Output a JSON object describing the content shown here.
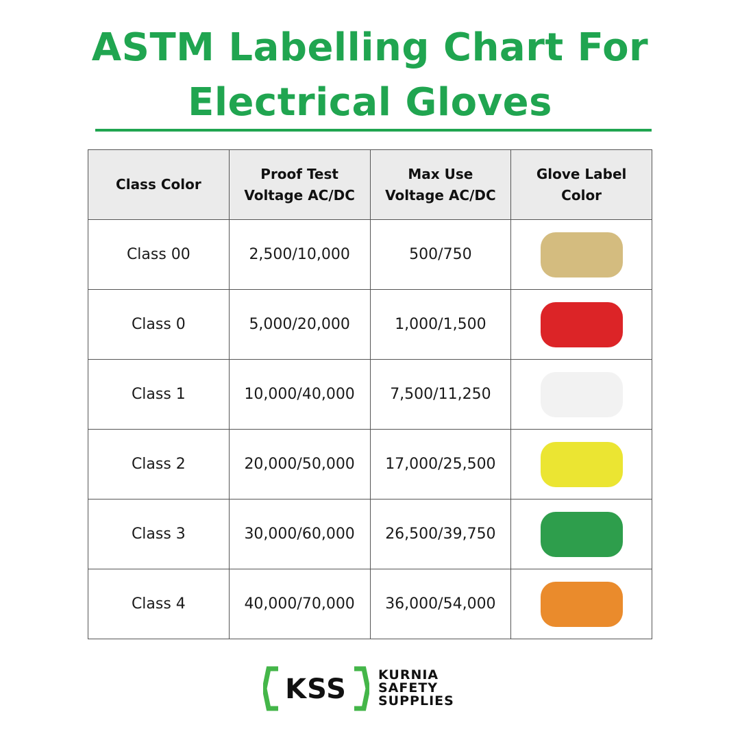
{
  "title": {
    "line1": "ASTM Labelling Chart For",
    "line2": "Electrical Gloves",
    "color": "#20a550"
  },
  "table": {
    "headers": [
      {
        "line1": "Class Color",
        "line2": ""
      },
      {
        "line1": "Proof Test",
        "line2": "Voltage AC/DC"
      },
      {
        "line1": "Max Use",
        "line2": "Voltage AC/DC"
      },
      {
        "line1": "Glove Label",
        "line2": "Color"
      }
    ],
    "rows": [
      {
        "class": "Class 00",
        "proof_test": "2,500/10,000",
        "max_use": "500/750",
        "label_color": "#d4bc7f",
        "label_color_name": "beige"
      },
      {
        "class": "Class 0",
        "proof_test": "5,000/20,000",
        "max_use": "1,000/1,500",
        "label_color": "#dc2427",
        "label_color_name": "red"
      },
      {
        "class": "Class 1",
        "proof_test": "10,000/40,000",
        "max_use": "7,500/11,250",
        "label_color": "#f2f2f2",
        "label_color_name": "white"
      },
      {
        "class": "Class 2",
        "proof_test": "20,000/50,000",
        "max_use": "17,000/25,500",
        "label_color": "#ebe532",
        "label_color_name": "yellow"
      },
      {
        "class": "Class 3",
        "proof_test": "30,000/60,000",
        "max_use": "26,500/39,750",
        "label_color": "#2e9e4c",
        "label_color_name": "green"
      },
      {
        "class": "Class 4",
        "proof_test": "40,000/70,000",
        "max_use": "36,000/54,000",
        "label_color": "#ea8b2c",
        "label_color_name": "orange"
      }
    ]
  },
  "logo": {
    "mark": "KSS",
    "line1": "KURNIA",
    "line2": "SAFETY",
    "line3": "SUPPLIES",
    "bracket_color": "#44b649"
  }
}
